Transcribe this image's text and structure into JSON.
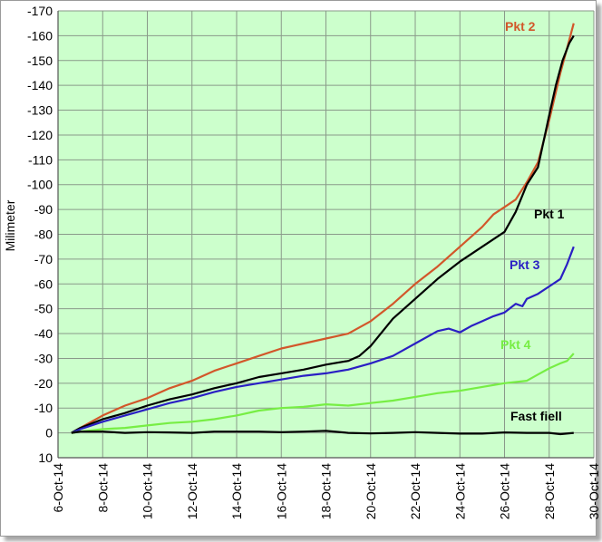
{
  "chart_data": {
    "type": "line",
    "ylabel": "Milimeter",
    "xlabel": "",
    "title": "",
    "y_reversed": true,
    "ylim": [
      10,
      -170
    ],
    "y_ticks": [
      -170,
      -160,
      -150,
      -140,
      -130,
      -120,
      -110,
      -100,
      -90,
      -80,
      -70,
      -60,
      -50,
      -40,
      -30,
      -20,
      -10,
      0,
      10
    ],
    "x_ticks": [
      "6-Oct-14",
      "8-Oct-14",
      "10-Oct-14",
      "12-Oct-14",
      "14-Oct-14",
      "16-Oct-14",
      "18-Oct-14",
      "20-Oct-14",
      "22-Oct-14",
      "24-Oct-14",
      "26-Oct-14",
      "28-Oct-14",
      "30-Oct-14"
    ],
    "x_tick_days": [
      6,
      8,
      10,
      12,
      14,
      16,
      18,
      20,
      22,
      24,
      26,
      28,
      30
    ],
    "xlim": [
      6,
      30
    ],
    "grid": true,
    "plot_background": "#ccffcc",
    "series": [
      {
        "name": "Pkt 2",
        "color": "#d2572a",
        "x": [
          6.6,
          7,
          8,
          9,
          10,
          11,
          12,
          13,
          14,
          15,
          16,
          17,
          18,
          18.5,
          19,
          20,
          21,
          22,
          23,
          24,
          25,
          25.5,
          26,
          26.5,
          27,
          27.5,
          28,
          28.5,
          28.8,
          29.1
        ],
        "y": [
          0,
          -2,
          -7,
          -11,
          -14,
          -18,
          -21,
          -25,
          -28,
          -31,
          -34,
          -36,
          -38,
          -39,
          -40,
          -45,
          -52,
          -60,
          -67,
          -75,
          -83,
          -88,
          -91,
          -94,
          -101,
          -109,
          -126,
          -145,
          -155,
          -165
        ]
      },
      {
        "name": "Pkt 1",
        "color": "#000000",
        "x": [
          6.6,
          7,
          8,
          9,
          10,
          11,
          12,
          13,
          14,
          15,
          16,
          17,
          18,
          19,
          19.5,
          20,
          21,
          22,
          23,
          24,
          25,
          26,
          26.5,
          27,
          27.5,
          28,
          28.3,
          28.6,
          28.9,
          29.1
        ],
        "y": [
          0,
          -2,
          -5.5,
          -8,
          -11,
          -13.5,
          -15.5,
          -18,
          -20,
          -22.5,
          -24,
          -25.5,
          -27.5,
          -29,
          -31,
          -35,
          -46,
          -54,
          -62,
          -69,
          -75,
          -81,
          -89,
          -100,
          -107,
          -128,
          -140,
          -150,
          -157,
          -160
        ]
      },
      {
        "name": "Pkt 3",
        "color": "#2a1fc4",
        "x": [
          6.6,
          7,
          8,
          9,
          10,
          11,
          12,
          13,
          14,
          15,
          16,
          17,
          18,
          19,
          20,
          21,
          22,
          23,
          23.5,
          24,
          24.5,
          25,
          25.5,
          26,
          26.5,
          26.8,
          27,
          27.5,
          28,
          28.5,
          28.8,
          29.1
        ],
        "y": [
          0,
          -1.5,
          -4.5,
          -7,
          -9.5,
          -12,
          -14,
          -16.5,
          -18.5,
          -20,
          -21.5,
          -23,
          -24,
          -25.5,
          -28,
          -31,
          -36,
          -41,
          -42,
          -40.5,
          -43,
          -45,
          -47,
          -48.5,
          -52,
          -51,
          -54,
          -56,
          -59,
          -62,
          -68,
          -75
        ]
      },
      {
        "name": "Pkt 4",
        "color": "#77ee44",
        "x": [
          6.6,
          7,
          8,
          9,
          10,
          11,
          12,
          13,
          14,
          15,
          16,
          17,
          18,
          19,
          20,
          21,
          22,
          23,
          24,
          25,
          26,
          27,
          27.5,
          28,
          28.5,
          28.8,
          29.1
        ],
        "y": [
          0,
          -0.5,
          -1.5,
          -2,
          -3,
          -4,
          -4.5,
          -5.5,
          -7,
          -9,
          -10,
          -10.5,
          -11.5,
          -11,
          -12,
          -13,
          -14.5,
          -16,
          -17,
          -18.5,
          -20,
          -21,
          -23.5,
          -26,
          -28,
          -29,
          -32
        ]
      },
      {
        "name": "Fast fiell",
        "color": "#000000",
        "x": [
          6.6,
          7,
          8,
          9,
          10,
          11,
          12,
          13,
          14,
          15,
          16,
          17,
          18,
          19,
          20,
          21,
          22,
          23,
          24,
          25,
          26,
          27,
          28,
          28.5,
          29.1
        ],
        "y": [
          0,
          -0.5,
          -0.5,
          0,
          -0.3,
          -0.2,
          0,
          -0.5,
          -0.5,
          -0.5,
          -0.3,
          -0.5,
          -0.8,
          0,
          0.2,
          0,
          -0.3,
          0,
          0.3,
          0.3,
          -0.2,
          0,
          0,
          0.5,
          0
        ]
      }
    ]
  }
}
